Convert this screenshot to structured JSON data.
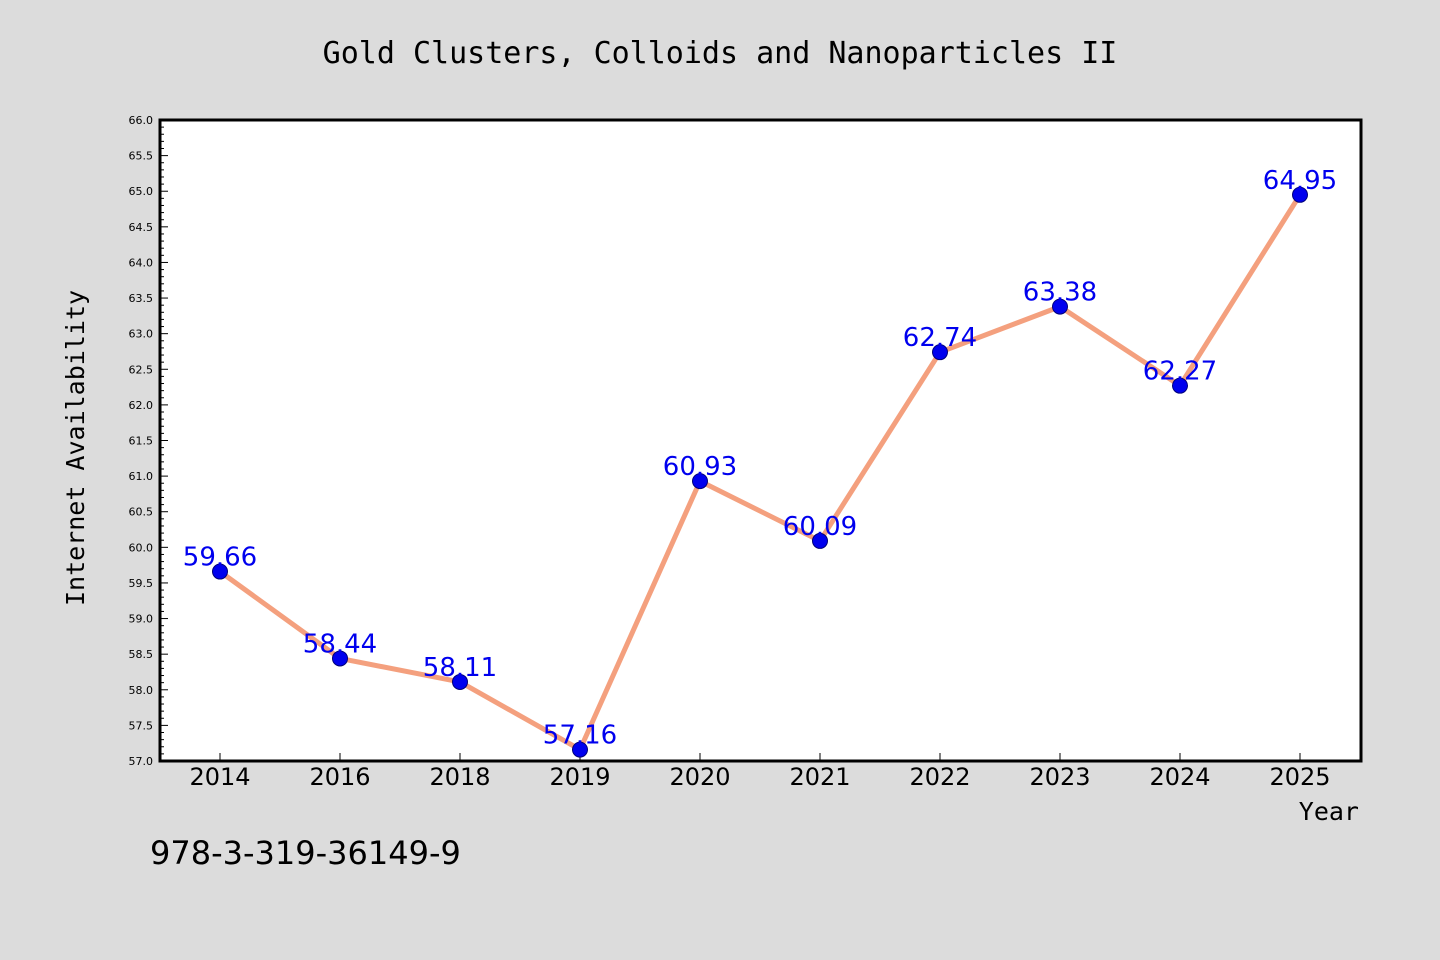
{
  "chart_data": {
    "type": "line",
    "title": "Gold Clusters, Colloids and Nanoparticles II",
    "xlabel": "Year",
    "ylabel": "Internet Availability",
    "categories": [
      "2014",
      "2016",
      "2018",
      "2019",
      "2020",
      "2021",
      "2022",
      "2023",
      "2024",
      "2025"
    ],
    "series": [
      {
        "values": [
          59.66,
          58.44,
          58.11,
          57.16,
          60.93,
          60.09,
          62.74,
          63.38,
          62.27,
          64.95
        ]
      }
    ],
    "data_labels": [
      "59.66",
      "58.44",
      "58.11",
      "57.16",
      "60.93",
      "60.09",
      "62.74",
      "63.38",
      "62.27",
      "64.95"
    ],
    "ylim": [
      57.0,
      66.0
    ],
    "yticks": [
      "57.0",
      "57.5",
      "58.0",
      "58.5",
      "59.0",
      "59.5",
      "60.0",
      "60.5",
      "61.0",
      "61.5",
      "62.0",
      "62.5",
      "63.0",
      "63.5",
      "64.0",
      "64.5",
      "65.0",
      "65.5",
      "66.0"
    ],
    "grid": false,
    "legend": "none",
    "colors": {
      "line": "#f4a07e",
      "marker": "#0000ee",
      "label": "#0000ee",
      "background": "#dcdcdc",
      "plot_background": "#ffffff"
    }
  },
  "footer_text": "978-3-319-36149-9"
}
